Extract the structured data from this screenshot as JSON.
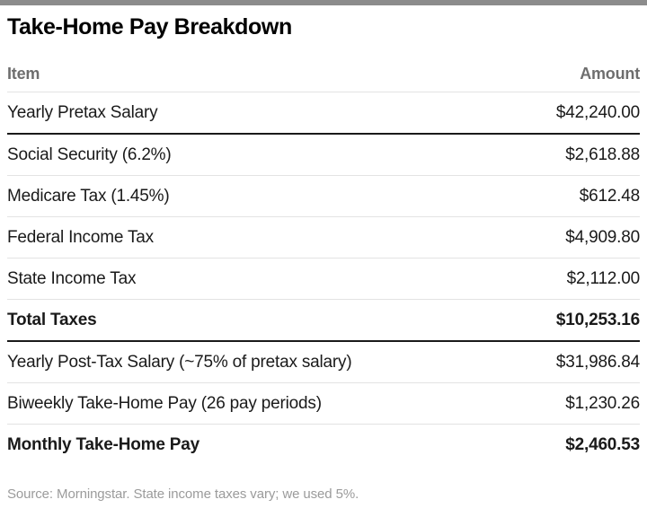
{
  "page": {
    "title": "Take-Home Pay Breakdown",
    "source_note": "Source: Morningstar. State income taxes vary; we used 5%."
  },
  "table": {
    "columns": {
      "item": "Item",
      "amount": "Amount"
    },
    "rows": [
      {
        "item": "Yearly Pretax Salary",
        "amount": "$42,240.00",
        "bold": false,
        "divider": "dark"
      },
      {
        "item": "Social Security (6.2%)",
        "amount": "$2,618.88",
        "bold": false,
        "divider": "light"
      },
      {
        "item": "Medicare Tax (1.45%)",
        "amount": "$612.48",
        "bold": false,
        "divider": "light"
      },
      {
        "item": "Federal Income Tax",
        "amount": "$4,909.80",
        "bold": false,
        "divider": "light"
      },
      {
        "item": "State Income Tax",
        "amount": "$2,112.00",
        "bold": false,
        "divider": "light"
      },
      {
        "item": "Total Taxes",
        "amount": "$10,253.16",
        "bold": true,
        "divider": "dark"
      },
      {
        "item": "Yearly Post-Tax Salary (~75% of pretax salary)",
        "amount": "$31,986.84",
        "bold": false,
        "divider": "light"
      },
      {
        "item": "Biweekly Take-Home Pay (26 pay periods)",
        "amount": "$1,230.26",
        "bold": false,
        "divider": "light"
      },
      {
        "item": "Monthly Take-Home Pay",
        "amount": "$2,460.53",
        "bold": true,
        "divider": "none"
      }
    ]
  },
  "colors": {
    "top_bar": "#8c8c8c",
    "header_text": "#6e6e6e",
    "row_text": "#1a1a1a",
    "divider_dark": "#1a1a1a",
    "divider_light": "#e3e3e3",
    "source_text": "#9b9b9b"
  },
  "chart_data": {
    "type": "table",
    "title": "Take-Home Pay Breakdown",
    "columns": [
      "Item",
      "Amount"
    ],
    "rows": [
      [
        "Yearly Pretax Salary",
        42240.0
      ],
      [
        "Social Security (6.2%)",
        2618.88
      ],
      [
        "Medicare Tax (1.45%)",
        612.48
      ],
      [
        "Federal Income Tax",
        4909.8
      ],
      [
        "State Income Tax",
        2112.0
      ],
      [
        "Total Taxes",
        10253.16
      ],
      [
        "Yearly Post-Tax Salary (~75% of pretax salary)",
        31986.84
      ],
      [
        "Biweekly Take-Home Pay (26 pay periods)",
        1230.26
      ],
      [
        "Monthly Take-Home Pay",
        2460.53
      ]
    ],
    "emphasized_rows": [
      "Total Taxes",
      "Monthly Take-Home Pay"
    ],
    "source": "Source: Morningstar. State income taxes vary; we used 5%."
  }
}
